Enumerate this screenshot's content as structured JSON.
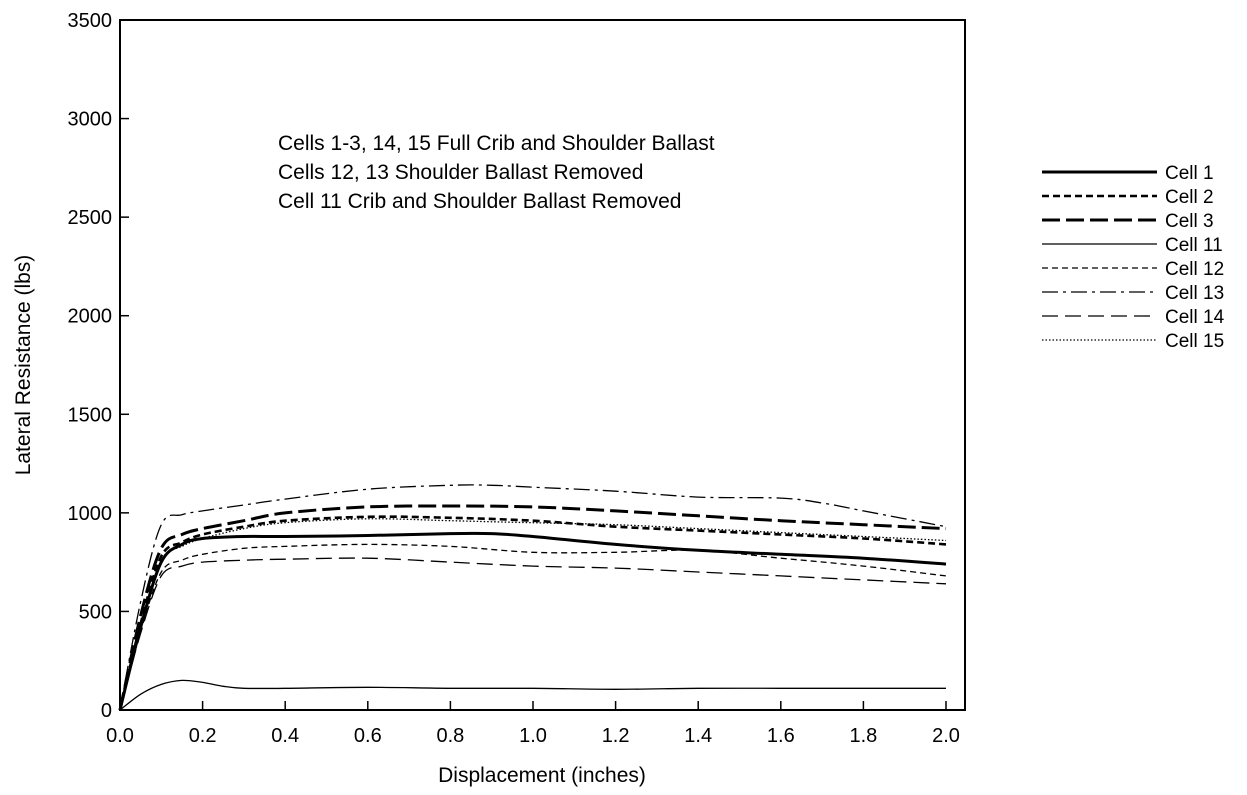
{
  "chart_data": {
    "type": "line",
    "title": "",
    "xlabel": "Displacement (inches)",
    "ylabel": "Lateral Resistance (lbs)",
    "xlim": [
      0.0,
      2.1
    ],
    "ylim": [
      0,
      3500
    ],
    "x_ticks": [
      "0.0",
      "0.2",
      "0.4",
      "0.6",
      "0.8",
      "1.0",
      "1.2",
      "1.4",
      "1.6",
      "1.8",
      "2.0"
    ],
    "y_ticks": [
      "0",
      "500",
      "1000",
      "1500",
      "2000",
      "2500",
      "3000",
      "3500"
    ],
    "grid": false,
    "legend_position": "right",
    "annotation_lines": [
      "Cells 1-3, 14, 15 Full Crib and Shoulder Ballast",
      "Cells 12, 13 Shoulder Ballast Removed",
      "Cell 11 Crib and Shoulder Ballast Removed"
    ],
    "series": [
      {
        "name": "Cell 1",
        "style": "solid-bold",
        "x": [
          0.0,
          0.05,
          0.1,
          0.15,
          0.2,
          0.3,
          0.4,
          0.6,
          0.8,
          0.9,
          1.0,
          1.2,
          1.4,
          1.6,
          1.8,
          2.0
        ],
        "y": [
          0,
          420,
          750,
          840,
          870,
          880,
          880,
          885,
          895,
          895,
          880,
          840,
          810,
          790,
          770,
          740
        ]
      },
      {
        "name": "Cell 2",
        "style": "dash-bold",
        "x": [
          0.0,
          0.05,
          0.1,
          0.15,
          0.2,
          0.3,
          0.4,
          0.6,
          0.8,
          1.0,
          1.2,
          1.4,
          1.6,
          1.8,
          2.0
        ],
        "y": [
          0,
          440,
          780,
          850,
          890,
          930,
          960,
          980,
          975,
          960,
          930,
          910,
          890,
          870,
          840
        ]
      },
      {
        "name": "Cell 3",
        "style": "longdash-bold",
        "x": [
          0.0,
          0.05,
          0.1,
          0.15,
          0.2,
          0.3,
          0.4,
          0.6,
          0.8,
          1.0,
          1.2,
          1.4,
          1.6,
          1.8,
          2.0
        ],
        "y": [
          0,
          480,
          820,
          890,
          920,
          960,
          1000,
          1030,
          1035,
          1030,
          1010,
          985,
          960,
          940,
          920
        ]
      },
      {
        "name": "Cell 11",
        "style": "solid-thin",
        "x": [
          0.0,
          0.05,
          0.1,
          0.15,
          0.2,
          0.25,
          0.3,
          0.4,
          0.6,
          0.8,
          1.0,
          1.2,
          1.4,
          1.6,
          1.8,
          2.0
        ],
        "y": [
          0,
          80,
          130,
          150,
          140,
          120,
          110,
          110,
          115,
          110,
          110,
          105,
          110,
          110,
          110,
          110
        ]
      },
      {
        "name": "Cell 12",
        "style": "dash-thin",
        "x": [
          0.0,
          0.05,
          0.1,
          0.15,
          0.2,
          0.3,
          0.4,
          0.6,
          0.8,
          1.0,
          1.2,
          1.4,
          1.6,
          1.8,
          2.0
        ],
        "y": [
          0,
          400,
          700,
          760,
          790,
          820,
          830,
          840,
          830,
          800,
          800,
          810,
          770,
          730,
          680
        ]
      },
      {
        "name": "Cell 13",
        "style": "dashdot-thin",
        "x": [
          0.0,
          0.05,
          0.1,
          0.15,
          0.2,
          0.3,
          0.4,
          0.6,
          0.8,
          0.9,
          1.0,
          1.2,
          1.4,
          1.6,
          1.7,
          1.8,
          2.0
        ],
        "y": [
          0,
          550,
          940,
          990,
          1010,
          1040,
          1070,
          1120,
          1140,
          1140,
          1130,
          1110,
          1080,
          1075,
          1050,
          1010,
          930
        ]
      },
      {
        "name": "Cell 14",
        "style": "longdash-thin",
        "x": [
          0.0,
          0.05,
          0.1,
          0.15,
          0.2,
          0.3,
          0.4,
          0.6,
          0.8,
          1.0,
          1.2,
          1.4,
          1.6,
          1.8,
          2.0
        ],
        "y": [
          0,
          390,
          680,
          730,
          750,
          760,
          765,
          770,
          750,
          730,
          720,
          700,
          680,
          660,
          640
        ]
      },
      {
        "name": "Cell 15",
        "style": "dotted",
        "x": [
          0.0,
          0.05,
          0.1,
          0.15,
          0.2,
          0.3,
          0.4,
          0.6,
          0.8,
          1.0,
          1.2,
          1.4,
          1.6,
          1.8,
          2.0
        ],
        "y": [
          0,
          430,
          760,
          830,
          870,
          920,
          950,
          970,
          960,
          950,
          940,
          920,
          900,
          880,
          860
        ]
      }
    ]
  }
}
